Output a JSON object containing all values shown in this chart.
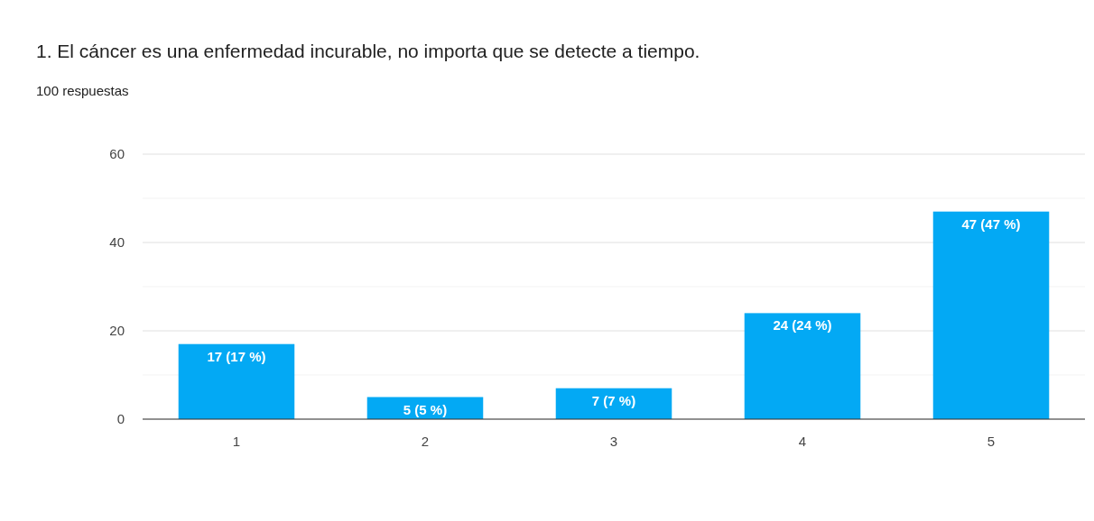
{
  "chart_data": {
    "type": "bar",
    "title": "1. El cáncer es una enfermedad incurable, no importa que se detecte a tiempo.",
    "subtitle": "100 respuestas",
    "categories": [
      "1",
      "2",
      "3",
      "4",
      "5"
    ],
    "values": [
      17,
      5,
      7,
      24,
      47
    ],
    "value_labels": [
      "17 (17 %)",
      "5 (5 %)",
      "7 (7 %)",
      "24 (24 %)",
      "47 (47 %)"
    ],
    "color": "#03a9f4",
    "ylim": [
      0,
      60
    ],
    "yticks": [
      0,
      {
        "value": 10,
        "label": null
      },
      20,
      {
        "value": 30,
        "label": null
      },
      40,
      {
        "value": 50,
        "label": null
      },
      60
    ],
    "grid": "y"
  }
}
